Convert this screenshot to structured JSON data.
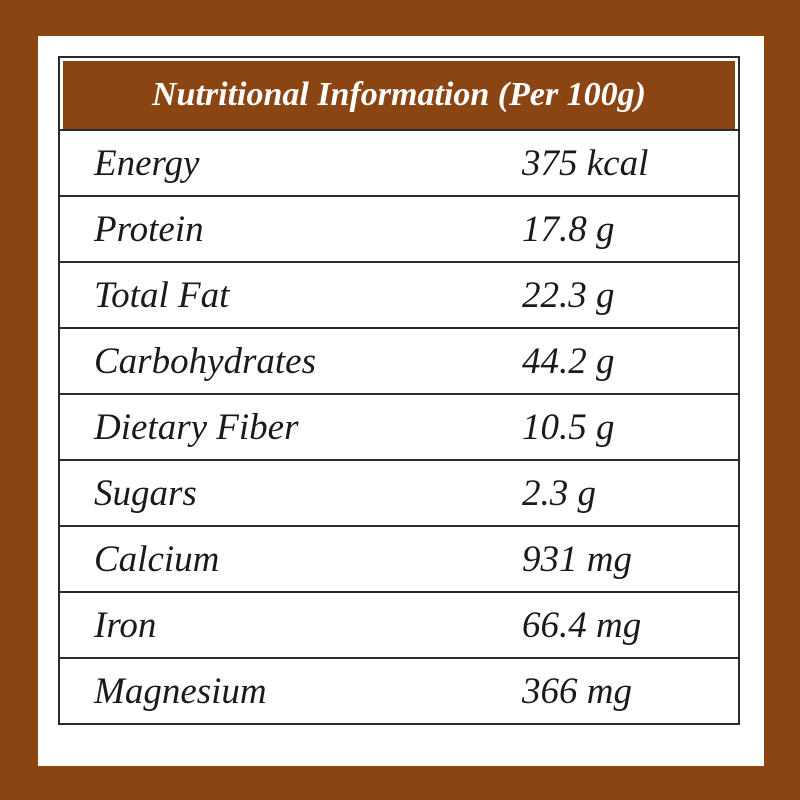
{
  "table": {
    "title": "Nutritional Information (Per 100g)",
    "rows": [
      {
        "label": "Energy",
        "value": "375 kcal"
      },
      {
        "label": "Protein",
        "value": "17.8 g"
      },
      {
        "label": "Total Fat",
        "value": "22.3 g"
      },
      {
        "label": "Carbohydrates",
        "value": "44.2 g"
      },
      {
        "label": "Dietary Fiber",
        "value": "10.5 g"
      },
      {
        "label": "Sugars",
        "value": "2.3 g"
      },
      {
        "label": "Calcium",
        "value": "931 mg"
      },
      {
        "label": "Iron",
        "value": "66.4 mg"
      },
      {
        "label": "Magnesium",
        "value": "366 mg"
      }
    ]
  },
  "colors": {
    "frame": "#8B4513",
    "header_bg": "#8B4513",
    "header_text": "#ffffff",
    "border": "#2b2b2b"
  }
}
